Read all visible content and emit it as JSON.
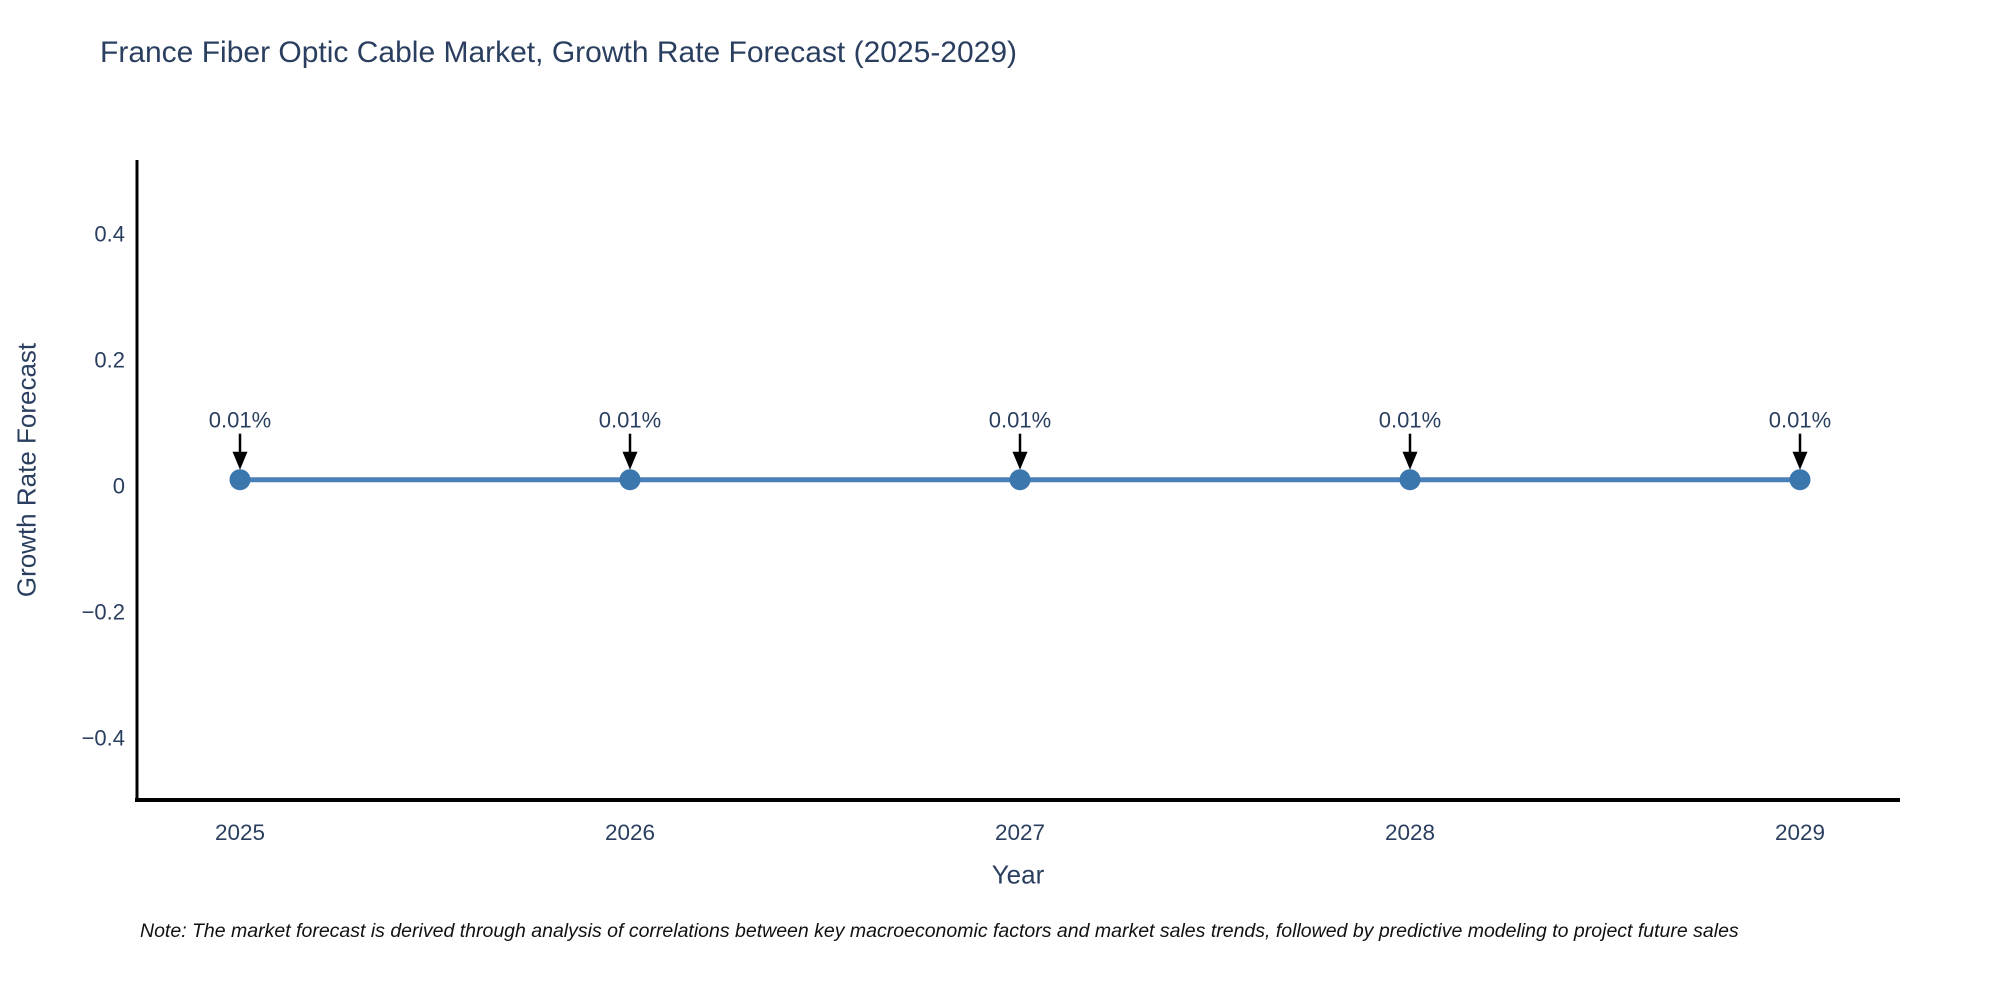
{
  "title": "France Fiber Optic Cable Market, Growth Rate Forecast (2025-2029)",
  "note": {
    "text": "Note: The market forecast is derived through analysis of correlations between key macroeconomic factors and market sales trends, followed by predictive modeling to project future sales"
  },
  "chart_data": {
    "type": "line",
    "title": "France Fiber Optic Cable Market, Growth Rate Forecast (2025-2029)",
    "xlabel": "Year",
    "ylabel": "Growth Rate Forecast",
    "x": [
      2025,
      2026,
      2027,
      2028,
      2029
    ],
    "x_tick_labels": [
      "2025",
      "2026",
      "2027",
      "2028",
      "2029"
    ],
    "series": [
      {
        "name": "Growth Rate Forecast",
        "values": [
          0.01,
          0.01,
          0.01,
          0.01,
          0.01
        ]
      }
    ],
    "annotations": [
      "0.01%",
      "0.01%",
      "0.01%",
      "0.01%",
      "0.01%"
    ],
    "y_ticks": [
      0.4,
      0.2,
      0,
      -0.2,
      -0.4
    ],
    "y_tick_labels": [
      "0.4",
      "0.2",
      "0",
      "−0.2",
      "−0.4"
    ],
    "ylim": [
      -0.5,
      0.52
    ],
    "grid": false,
    "legend": false,
    "colors": {
      "line": "#4a80b8",
      "marker": "#3b76ad",
      "axis": "#000000",
      "text": "#2a3f5f",
      "annotation_text": "#2a3f5f",
      "annotation_arrow": "#000000",
      "background": "#ffffff"
    }
  }
}
